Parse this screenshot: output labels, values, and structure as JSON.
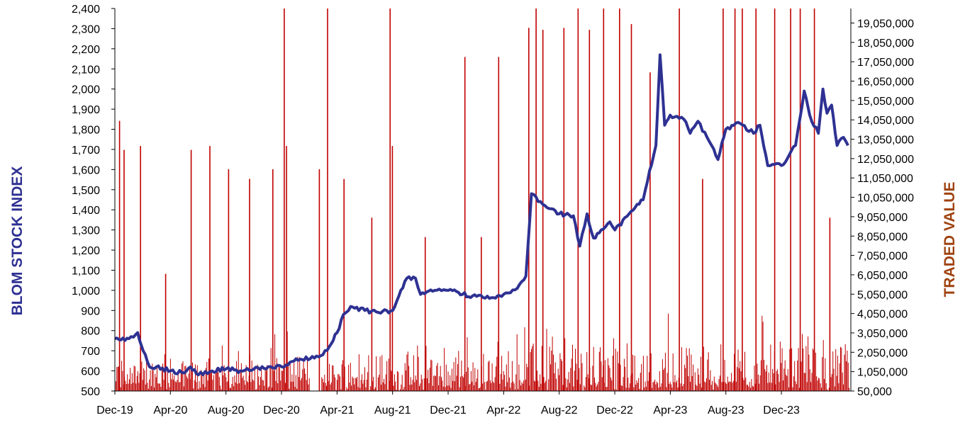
{
  "chart_data": {
    "type": "bar+line",
    "title": "",
    "colors": {
      "index_line": "#2E3192",
      "traded_bars": "#C00000",
      "left_label": "#2E3192",
      "right_label": "#A0420F"
    },
    "x": {
      "ticks": [
        "Dec-19",
        "Apr-20",
        "Aug-20",
        "Dec-20",
        "Apr-21",
        "Aug-21",
        "Dec-21",
        "Apr-22",
        "Aug-22",
        "Dec-22",
        "Apr-23",
        "Aug-23",
        "Dec-23"
      ],
      "range": [
        "2019-12",
        "2024-05"
      ]
    },
    "y_left": {
      "label": "BLOM STOCK INDEX",
      "ylim": [
        500,
        2400
      ],
      "ticks": [
        "500",
        "600",
        "700",
        "800",
        "900",
        "1,000",
        "1,100",
        "1,200",
        "1,300",
        "1,400",
        "1,500",
        "1,600",
        "1,700",
        "1,800",
        "1,900",
        "2,000",
        "2,100",
        "2,200",
        "2,300",
        "2,400"
      ]
    },
    "y_right": {
      "label": "TRADED VALUE",
      "ylim": [
        50000,
        19800000
      ],
      "ticks": [
        "50,000",
        "1,050,000",
        "2,050,000",
        "3,050,000",
        "4,050,000",
        "5,050,000",
        "6,050,000",
        "7,050,000",
        "8,050,000",
        "9,050,000",
        "10,050,000",
        "11,050,000",
        "12,050,000",
        "13,050,000",
        "14,050,000",
        "15,050,000",
        "16,050,000",
        "17,050,000",
        "18,050,000",
        "19,050,000"
      ]
    },
    "series": [
      {
        "name": "BLOM STOCK INDEX",
        "kind": "line",
        "axis": "left",
        "points": [
          [
            "2019-12",
            760
          ],
          [
            "2020-01",
            760
          ],
          [
            "2020-01-20",
            790
          ],
          [
            "2020-02",
            700
          ],
          [
            "2020-02-15",
            620
          ],
          [
            "2020-03",
            620
          ],
          [
            "2020-04",
            600
          ],
          [
            "2020-05",
            590
          ],
          [
            "2020-05-15",
            620
          ],
          [
            "2020-06",
            580
          ],
          [
            "2020-07",
            600
          ],
          [
            "2020-08",
            610
          ],
          [
            "2020-09",
            600
          ],
          [
            "2020-10",
            610
          ],
          [
            "2020-11",
            620
          ],
          [
            "2020-12",
            620
          ],
          [
            "2021-01",
            660
          ],
          [
            "2021-02",
            660
          ],
          [
            "2021-03",
            680
          ],
          [
            "2021-03-15",
            720
          ],
          [
            "2021-04",
            790
          ],
          [
            "2021-04-15",
            880
          ],
          [
            "2021-05",
            920
          ],
          [
            "2021-06",
            900
          ],
          [
            "2021-07",
            890
          ],
          [
            "2021-08",
            900
          ],
          [
            "2021-09",
            1060
          ],
          [
            "2021-09-20",
            1060
          ],
          [
            "2021-10",
            980
          ],
          [
            "2021-11",
            1000
          ],
          [
            "2021-12",
            1000
          ],
          [
            "2022-01",
            980
          ],
          [
            "2022-02",
            970
          ],
          [
            "2022-03",
            960
          ],
          [
            "2022-04",
            980
          ],
          [
            "2022-05",
            1010
          ],
          [
            "2022-05-20",
            1070
          ],
          [
            "2022-06",
            1480
          ],
          [
            "2022-07",
            1420
          ],
          [
            "2022-08",
            1380
          ],
          [
            "2022-09",
            1370
          ],
          [
            "2022-09-15",
            1220
          ],
          [
            "2022-10",
            1380
          ],
          [
            "2022-10-15",
            1260
          ],
          [
            "2022-11",
            1300
          ],
          [
            "2022-11-20",
            1340
          ],
          [
            "2022-12",
            1300
          ],
          [
            "2023-01",
            1380
          ],
          [
            "2023-02",
            1450
          ],
          [
            "2023-03",
            1720
          ],
          [
            "2023-03-10",
            2170
          ],
          [
            "2023-03-20",
            1820
          ],
          [
            "2023-04",
            1870
          ],
          [
            "2023-05",
            1850
          ],
          [
            "2023-05-15",
            1780
          ],
          [
            "2023-06",
            1840
          ],
          [
            "2023-07",
            1720
          ],
          [
            "2023-07-15",
            1650
          ],
          [
            "2023-08",
            1800
          ],
          [
            "2023-09",
            1830
          ],
          [
            "2023-10",
            1780
          ],
          [
            "2023-10-15",
            1820
          ],
          [
            "2023-11",
            1620
          ],
          [
            "2023-12",
            1620
          ],
          [
            "2024-01",
            1720
          ],
          [
            "2024-01-20",
            1990
          ],
          [
            "2024-02",
            1870
          ],
          [
            "2024-02-20",
            1780
          ],
          [
            "2024-03",
            2000
          ],
          [
            "2024-03-10",
            1880
          ],
          [
            "2024-03-20",
            1920
          ],
          [
            "2024-04",
            1720
          ],
          [
            "2024-04-15",
            1760
          ],
          [
            "2024-04-25",
            1720
          ]
        ]
      },
      {
        "name": "TRADED VALUE",
        "kind": "bar",
        "axis": "right",
        "note_values": "approximate peaks read from chart",
        "peaks": [
          [
            "2019-12-10",
            14000000
          ],
          [
            "2019-12-20",
            12500000
          ],
          [
            "2020-01-25",
            12700000
          ],
          [
            "2020-03-20",
            6100000
          ],
          [
            "2020-05-15",
            12500000
          ],
          [
            "2020-06-25",
            12700000
          ],
          [
            "2020-08-05",
            11500000
          ],
          [
            "2020-09-20",
            11000000
          ],
          [
            "2020-11-10",
            11500000
          ],
          [
            "2020-12-05",
            19800000
          ],
          [
            "2020-12-10",
            12700000
          ],
          [
            "2021-02-20",
            11500000
          ],
          [
            "2021-03-10",
            19800000
          ],
          [
            "2021-04-15",
            11000000
          ],
          [
            "2021-06-15",
            9000000
          ],
          [
            "2021-07-25",
            19800000
          ],
          [
            "2021-07-30",
            12700000
          ],
          [
            "2021-10-10",
            8000000
          ],
          [
            "2022-01-05",
            17300000
          ],
          [
            "2022-02-10",
            8000000
          ],
          [
            "2022-03-20",
            17300000
          ],
          [
            "2022-05-25",
            18800000
          ],
          [
            "2022-06-10",
            19800000
          ],
          [
            "2022-06-25",
            18700000
          ],
          [
            "2022-08-10",
            18800000
          ],
          [
            "2022-09-10",
            19800000
          ],
          [
            "2022-10-05",
            18700000
          ],
          [
            "2022-11-05",
            19800000
          ],
          [
            "2022-12-10",
            19800000
          ],
          [
            "2023-01-05",
            19000000
          ],
          [
            "2023-02-15",
            16500000
          ],
          [
            "2023-04-20",
            19800000
          ],
          [
            "2023-06-10",
            11000000
          ],
          [
            "2023-07-25",
            19800000
          ],
          [
            "2023-08-20",
            19800000
          ],
          [
            "2023-09-05",
            19800000
          ],
          [
            "2023-10-05",
            19800000
          ],
          [
            "2023-11-15",
            19800000
          ],
          [
            "2023-12-20",
            19800000
          ],
          [
            "2024-01-10",
            19800000
          ],
          [
            "2024-02-10",
            19800000
          ],
          [
            "2024-03-15",
            9000000
          ]
        ]
      }
    ]
  }
}
